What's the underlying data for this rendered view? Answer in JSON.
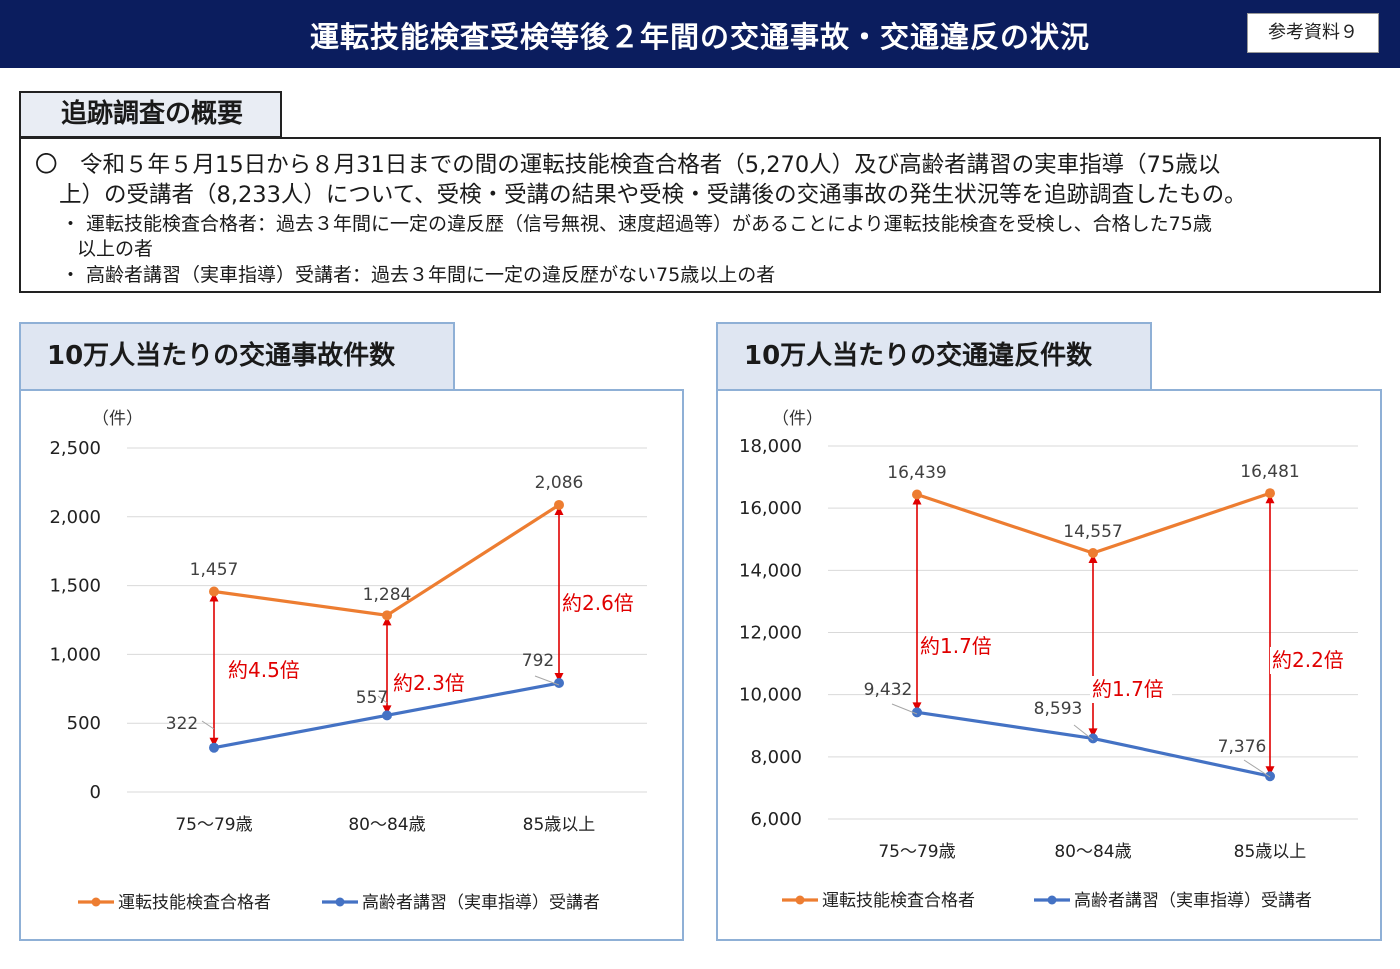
{
  "header": {
    "title": "運転技能検査受検等後２年間の交通事故・交通違反の状況",
    "badge": "参考資料９"
  },
  "summary": {
    "tab_label": "追跡調査の概要",
    "line1": "〇　令和５年５月15日から８月31日までの間の運転技能検査合格者（5,270人）及び高齢者講習の実車指導（75歳以",
    "line2": "上）の受講者（8,233人）について、受検・受講の結果や受検・受講後の交通事故の発生状況等を追跡調査したもの。",
    "line3": "・ 運転技能検査合格者：過去３年間に一定の違反歴（信号無視、速度超過等）があることにより運転技能検査を受検し、合格した75歳",
    "line4": "以上の者",
    "line5": "・ 高齢者講習（実車指導）受講者：過去３年間に一定の違反歴がない75歳以上の者"
  },
  "colors": {
    "series_a": "#ed7d31",
    "series_b": "#4472c4",
    "ratio": "#e00000",
    "header_bg": "#0b1d5e"
  },
  "chart_data": [
    {
      "type": "line",
      "title": "10万人当たりの交通事故件数",
      "yunit": "（件）",
      "categories": [
        "75〜79歳",
        "80〜84歳",
        "85歳以上"
      ],
      "ylim": [
        0,
        2500
      ],
      "yticks": [
        0,
        500,
        1000,
        1500,
        2000,
        2500
      ],
      "ytick_labels": [
        "0",
        "500",
        "1,000",
        "1,500",
        "2,000",
        "2,500"
      ],
      "grid": true,
      "legend_position": "bottom",
      "series": [
        {
          "name": "運転技能検査合格者",
          "values": [
            1457,
            1284,
            2086
          ],
          "labels": [
            "1,457",
            "1,284",
            "2,086"
          ]
        },
        {
          "name": "高齢者講習（実車指導）受講者",
          "values": [
            322,
            557,
            792
          ],
          "labels": [
            "322",
            "557",
            "792"
          ]
        }
      ],
      "ratios": [
        "約4.5倍",
        "約2.3倍",
        "約2.6倍"
      ]
    },
    {
      "type": "line",
      "title": "10万人当たりの交通違反件数",
      "yunit": "（件）",
      "categories": [
        "75〜79歳",
        "80〜84歳",
        "85歳以上"
      ],
      "ylim": [
        6000,
        18000
      ],
      "yticks": [
        6000,
        8000,
        10000,
        12000,
        14000,
        16000,
        18000
      ],
      "ytick_labels": [
        "6,000",
        "8,000",
        "10,000",
        "12,000",
        "14,000",
        "16,000",
        "18,000"
      ],
      "grid": true,
      "legend_position": "bottom",
      "series": [
        {
          "name": "運転技能検査合格者",
          "values": [
            16439,
            14557,
            16481
          ],
          "labels": [
            "16,439",
            "14,557",
            "16,481"
          ]
        },
        {
          "name": "高齢者講習（実車指導）受講者",
          "values": [
            9432,
            8593,
            7376
          ],
          "labels": [
            "9,432",
            "8,593",
            "7,376"
          ]
        }
      ],
      "ratios": [
        "約1.7倍",
        "約1.7倍",
        "約2.2倍"
      ]
    }
  ]
}
